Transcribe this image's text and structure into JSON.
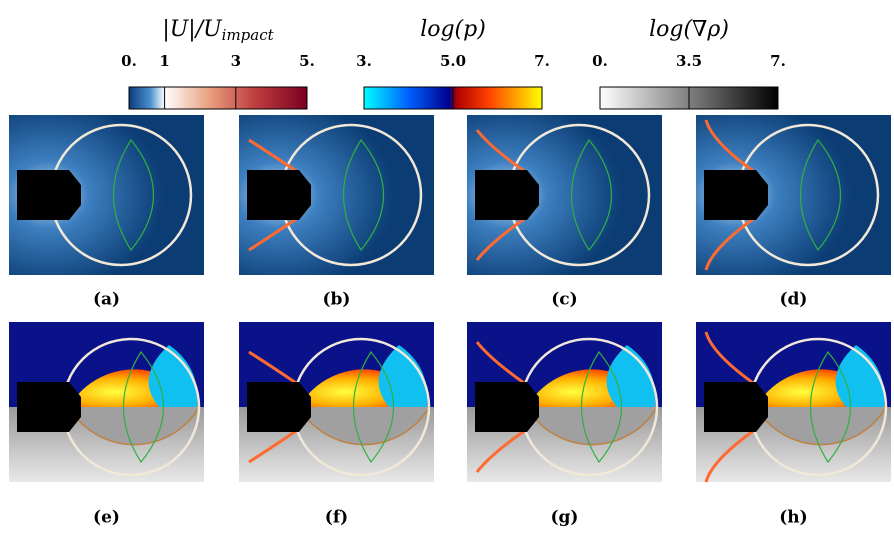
{
  "colorbars": [
    {
      "title": "|U|/U",
      "title_subscript": "impact",
      "range": [
        0,
        5
      ],
      "ticks": [
        {
          "value": 0,
          "label": "0."
        },
        1,
        3,
        {
          "value": 5,
          "label": "5."
        }
      ]
    },
    {
      "title": "log(p)",
      "range": [
        3,
        7
      ],
      "ticks": [
        {
          "value": 3,
          "label": "3."
        },
        {
          "value": 5,
          "label": "5.0"
        },
        {
          "value": 7,
          "label": "7."
        }
      ]
    },
    {
      "title": "log(∇ρ)",
      "range": [
        0,
        7
      ],
      "ticks": [
        {
          "value": 0,
          "label": "0."
        },
        3.5,
        {
          "value": 7,
          "label": "7."
        }
      ]
    }
  ],
  "panels": [
    "(a)",
    "(b)",
    "(c)",
    "(d)",
    "(e)",
    "(f)",
    "(g)",
    "(h)"
  ]
}
